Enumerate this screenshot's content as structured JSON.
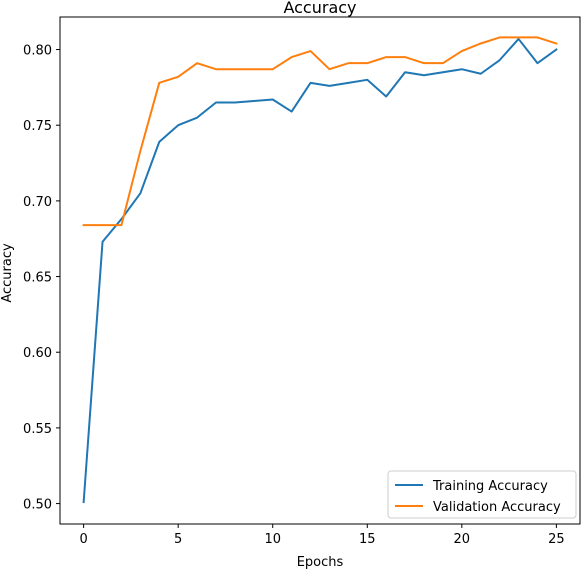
{
  "chart_data": {
    "type": "line",
    "title": "Accuracy",
    "xlabel": "Epochs",
    "ylabel": "Accuracy",
    "xlim": [
      -1.25,
      26.25
    ],
    "ylim": [
      0.4865,
      0.8215
    ],
    "xticks": [
      0,
      5,
      10,
      15,
      20,
      25
    ],
    "yticks": [
      0.5,
      0.55,
      0.6,
      0.65,
      0.7,
      0.75,
      0.8
    ],
    "ytick_labels": [
      "0.50",
      "0.55",
      "0.60",
      "0.65",
      "0.70",
      "0.75",
      "0.80"
    ],
    "grid": false,
    "legend_position": "lower-right",
    "x": [
      0,
      1,
      2,
      3,
      4,
      5,
      6,
      7,
      8,
      9,
      10,
      11,
      12,
      13,
      14,
      15,
      16,
      17,
      18,
      19,
      20,
      21,
      22,
      23,
      24,
      25
    ],
    "series": [
      {
        "name": "Training Accuracy",
        "color": "#1f77b4",
        "values": [
          0.501,
          0.673,
          0.688,
          0.705,
          0.739,
          0.75,
          0.755,
          0.765,
          0.765,
          0.766,
          0.767,
          0.759,
          0.778,
          0.776,
          0.778,
          0.78,
          0.769,
          0.785,
          0.783,
          0.785,
          0.787,
          0.784,
          0.793,
          0.807,
          0.791,
          0.8
        ]
      },
      {
        "name": "Validation Accuracy",
        "color": "#ff7f0e",
        "values": [
          0.684,
          0.684,
          0.684,
          0.733,
          0.778,
          0.782,
          0.791,
          0.787,
          0.787,
          0.787,
          0.787,
          0.795,
          0.799,
          0.787,
          0.791,
          0.791,
          0.795,
          0.795,
          0.791,
          0.791,
          0.799,
          0.804,
          0.808,
          0.808,
          0.808,
          0.804
        ]
      }
    ]
  }
}
